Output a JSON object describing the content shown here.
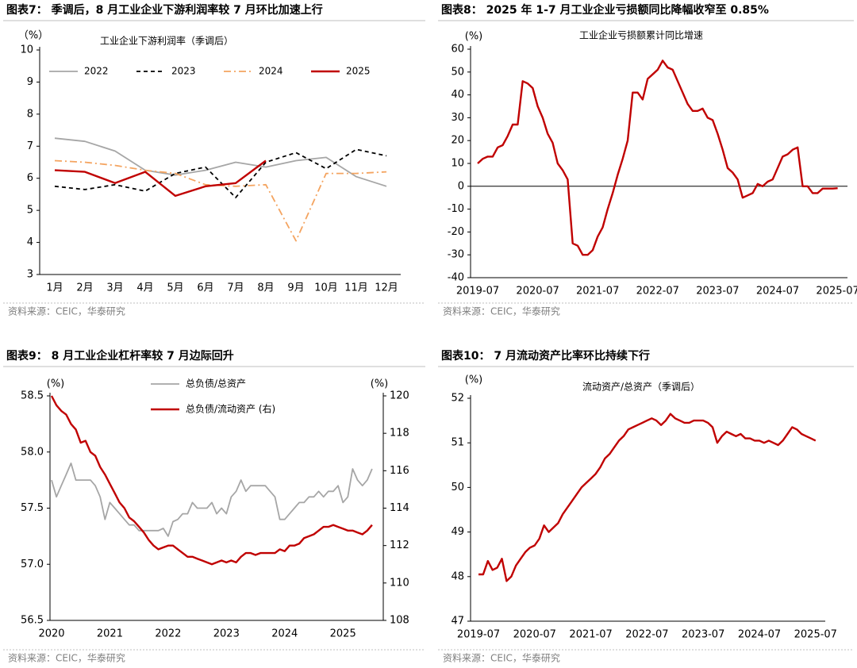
{
  "chart_data": [
    {
      "type": "line",
      "title": "图表7：  季调后，8 月工业企业下游利润率较 7 月环比加速上行",
      "subtitle": "工业企业下游利润率（季调后）",
      "y_unit": "（%）",
      "source": "资料来源：CEIC，华泰研究",
      "categories": [
        "1月",
        "2月",
        "3月",
        "4月",
        "5月",
        "6月",
        "7月",
        "8月",
        "9月",
        "10月",
        "11月",
        "12月"
      ],
      "ylim": [
        3,
        10
      ],
      "yticks": [
        3,
        4,
        5,
        6,
        7,
        8,
        9,
        10
      ],
      "legend": "top",
      "series": [
        {
          "name": "2022",
          "color": "#a6a6a6",
          "style": "solid",
          "values": [
            7.25,
            7.15,
            6.85,
            6.25,
            6.1,
            6.25,
            6.5,
            6.35,
            6.55,
            6.65,
            6.05,
            5.75
          ]
        },
        {
          "name": "2023",
          "color": "#000000",
          "style": "dashed",
          "values": [
            5.75,
            5.65,
            5.8,
            5.6,
            6.15,
            6.35,
            5.4,
            6.5,
            6.8,
            6.3,
            6.9,
            6.7
          ]
        },
        {
          "name": "2024",
          "color": "#f4a460",
          "style": "dashdot",
          "values": [
            6.55,
            6.5,
            6.4,
            6.25,
            6.15,
            5.8,
            5.75,
            5.8,
            4.05,
            6.15,
            6.15,
            6.2
          ]
        },
        {
          "name": "2025",
          "color": "#c00000",
          "style": "solid",
          "values": [
            6.25,
            6.2,
            5.85,
            6.2,
            5.45,
            5.75,
            5.85,
            6.55,
            null,
            null,
            null,
            null
          ]
        }
      ]
    },
    {
      "type": "line",
      "title": "图表8：  2025 年 1-7 月工业企业亏损额同比降幅收窄至 0.85%",
      "subtitle": "工业企业亏损额累计同比增速",
      "y_unit": "(%)",
      "source": "资料来源：CEIC，华泰研究",
      "categories": [
        "2019-07",
        null,
        null,
        null,
        null,
        null,
        null,
        null,
        null,
        null,
        null,
        null,
        "2020-07",
        null,
        null,
        null,
        null,
        null,
        null,
        null,
        null,
        null,
        null,
        null,
        "2021-07",
        null,
        null,
        null,
        null,
        null,
        null,
        null,
        null,
        null,
        null,
        null,
        "2022-07",
        null,
        null,
        null,
        null,
        null,
        null,
        null,
        null,
        null,
        null,
        null,
        "2023-07",
        null,
        null,
        null,
        null,
        null,
        null,
        null,
        null,
        null,
        null,
        null,
        "2024-07",
        null,
        null,
        null,
        null,
        null,
        null,
        null,
        null,
        null,
        null,
        null,
        "2025-07"
      ],
      "ylim": [
        -40,
        60
      ],
      "yticks": [
        -40,
        -30,
        -20,
        -10,
        0,
        10,
        20,
        30,
        40,
        50,
        60
      ],
      "zero_line": true,
      "series": [
        {
          "color": "#c00000",
          "style": "solid",
          "values": [
            10,
            12,
            13,
            13,
            17,
            18,
            22,
            27,
            27,
            46,
            45,
            43,
            35,
            30,
            23,
            19,
            10,
            7,
            3,
            -25,
            -26,
            -30,
            -30,
            -28,
            -22,
            -18,
            -10,
            -3,
            5,
            12,
            20,
            41,
            41,
            38,
            47,
            49,
            51,
            55,
            52,
            51,
            46,
            41,
            36,
            33,
            33,
            34,
            30,
            29,
            23,
            16,
            8,
            6,
            3,
            -5,
            -4,
            -3,
            1,
            0,
            2,
            3,
            8,
            13,
            14,
            16,
            17,
            0,
            0,
            -3,
            -3,
            -1,
            -1,
            -1,
            -0.85
          ]
        }
      ]
    },
    {
      "type": "line",
      "title": "图表9：  8 月工业企业杠杆率较 7 月边际回升",
      "y_unit": "(%)",
      "y2_unit": "(%)",
      "source": "资料来源：CEIC，华泰研究",
      "categories": [
        "2020",
        null,
        null,
        null,
        null,
        null,
        null,
        null,
        null,
        null,
        null,
        null,
        "2021",
        null,
        null,
        null,
        null,
        null,
        null,
        null,
        null,
        null,
        null,
        null,
        "2022",
        null,
        null,
        null,
        null,
        null,
        null,
        null,
        null,
        null,
        null,
        null,
        "2023",
        null,
        null,
        null,
        null,
        null,
        null,
        null,
        null,
        null,
        null,
        null,
        "2024",
        null,
        null,
        null,
        null,
        null,
        null,
        null,
        null,
        null,
        null,
        null,
        "2025",
        null,
        null,
        null,
        null,
        null,
        null
      ],
      "ylim": [
        56.5,
        58.5
      ],
      "yticks": [
        56.5,
        {
          "value": 57,
          "label": "57.0"
        },
        57.5,
        {
          "value": 58,
          "label": "58.0"
        },
        58.5
      ],
      "y2lim": [
        108,
        120
      ],
      "y2ticks": [
        108,
        110,
        112,
        114,
        116,
        118,
        120
      ],
      "legend": "top",
      "series": [
        {
          "name": "总负债/总资产",
          "color": "#a6a6a6",
          "style": "solid",
          "values": [
            57.75,
            57.6,
            57.7,
            57.8,
            57.9,
            57.75,
            57.75,
            57.75,
            57.75,
            57.7,
            57.6,
            57.4,
            57.55,
            57.5,
            57.45,
            57.4,
            57.35,
            57.35,
            57.3,
            57.3,
            57.3,
            57.3,
            57.3,
            57.32,
            57.25,
            57.38,
            57.4,
            57.45,
            57.45,
            57.55,
            57.5,
            57.5,
            57.5,
            57.55,
            57.45,
            57.5,
            57.45,
            57.6,
            57.65,
            57.75,
            57.65,
            57.7,
            57.7,
            57.7,
            57.7,
            57.65,
            57.6,
            57.4,
            57.4,
            57.45,
            57.5,
            57.55,
            57.55,
            57.6,
            57.6,
            57.65,
            57.6,
            57.65,
            57.65,
            57.7,
            57.55,
            57.6,
            57.85,
            57.75,
            57.7,
            57.75,
            57.85
          ]
        },
        {
          "name": "总负债/流动资产 (右)",
          "color": "#c00000",
          "style": "solid",
          "axis": "y2",
          "values": [
            120,
            119.5,
            119.2,
            119,
            118.5,
            118.2,
            117.5,
            117.6,
            117,
            116.8,
            116.2,
            115.8,
            115.3,
            114.8,
            114.3,
            114,
            113.5,
            113.3,
            113,
            112.7,
            112.3,
            112,
            111.8,
            111.9,
            112,
            112,
            111.8,
            111.6,
            111.4,
            111.4,
            111.3,
            111.2,
            111.1,
            111,
            111.1,
            111.2,
            111.1,
            111.2,
            111.1,
            111.4,
            111.6,
            111.6,
            111.5,
            111.6,
            111.6,
            111.6,
            111.6,
            111.8,
            111.7,
            112,
            112,
            112.1,
            112.4,
            112.5,
            112.6,
            112.8,
            113,
            113,
            113.1,
            113,
            112.9,
            112.8,
            112.8,
            112.7,
            112.6,
            112.8,
            113.1
          ]
        }
      ]
    },
    {
      "type": "line",
      "title": "图表10：  7 月流动资产比率环比持续下行",
      "subtitle": "流动资产/总资产（季调后）",
      "y_unit": "(%)",
      "source": "资料来源：CEIC，华泰研究",
      "categories": [
        "2019-07",
        null,
        null,
        null,
        null,
        null,
        null,
        null,
        null,
        null,
        null,
        null,
        "2020-07",
        null,
        null,
        null,
        null,
        null,
        null,
        null,
        null,
        null,
        null,
        null,
        "2021-07",
        null,
        null,
        null,
        null,
        null,
        null,
        null,
        null,
        null,
        null,
        null,
        "2022-07",
        null,
        null,
        null,
        null,
        null,
        null,
        null,
        null,
        null,
        null,
        null,
        "2023-07",
        null,
        null,
        null,
        null,
        null,
        null,
        null,
        null,
        null,
        null,
        null,
        "2024-07",
        null,
        null,
        null,
        null,
        null,
        null,
        null,
        null,
        null,
        null,
        null,
        "2025-07"
      ],
      "ylim": [
        47,
        52
      ],
      "yticks": [
        47,
        48,
        49,
        50,
        51,
        52
      ],
      "series": [
        {
          "color": "#c00000",
          "style": "solid",
          "values": [
            48.05,
            48.05,
            48.35,
            48.15,
            48.2,
            48.4,
            47.9,
            48.0,
            48.25,
            48.4,
            48.55,
            48.65,
            48.7,
            48.85,
            49.15,
            49.0,
            49.1,
            49.2,
            49.4,
            49.55,
            49.7,
            49.85,
            50.0,
            50.1,
            50.2,
            50.3,
            50.45,
            50.65,
            50.75,
            50.9,
            51.05,
            51.15,
            51.3,
            51.35,
            51.4,
            51.45,
            51.5,
            51.55,
            51.5,
            51.4,
            51.5,
            51.65,
            51.55,
            51.5,
            51.45,
            51.45,
            51.5,
            51.5,
            51.5,
            51.45,
            51.35,
            51.0,
            51.15,
            51.25,
            51.2,
            51.15,
            51.2,
            51.1,
            51.1,
            51.05,
            51.05,
            51.0,
            51.05,
            51.0,
            50.95,
            51.05,
            51.2,
            51.35,
            51.3,
            51.2,
            51.15,
            51.1,
            51.05
          ]
        }
      ]
    }
  ]
}
